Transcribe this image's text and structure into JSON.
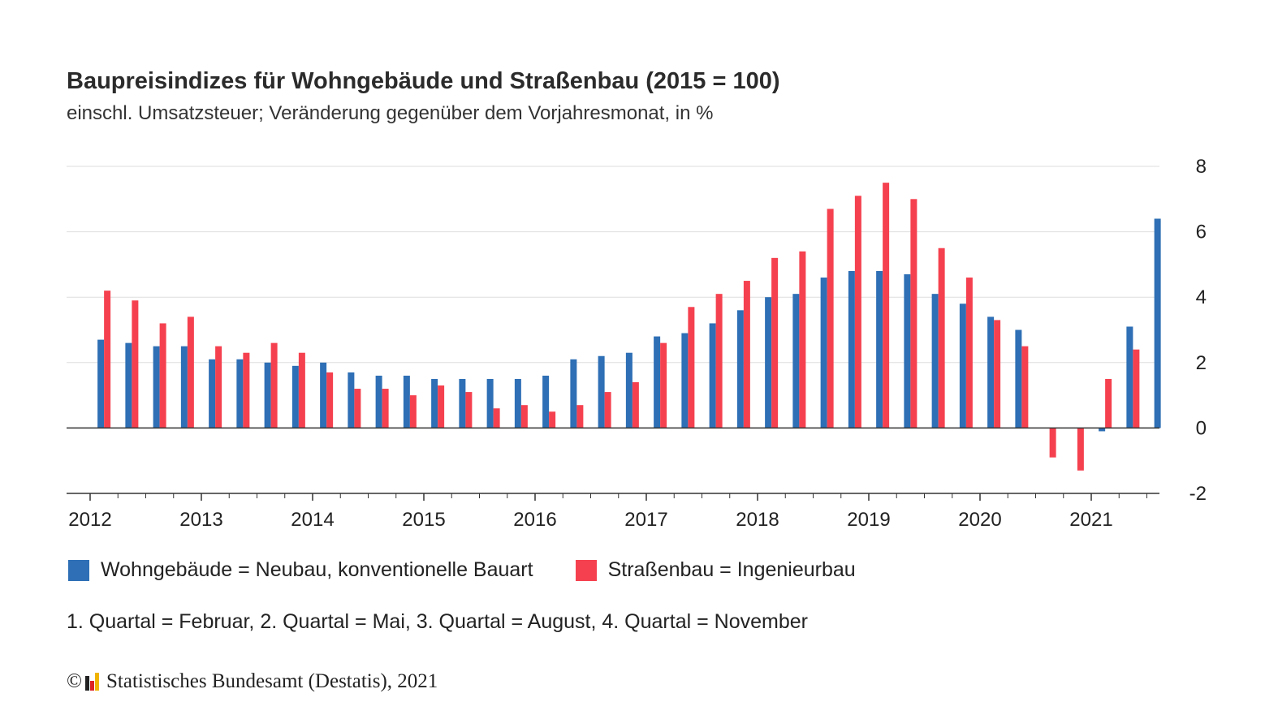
{
  "title": "Baupreisindizes für Wohngebäude und Straßenbau (2015 = 100)",
  "subtitle": "einschl. Umsatzsteuer; Veränderung gegenüber dem Vorjahresmonat, in %",
  "legend": {
    "series1": "Wohngebäude = Neubau, konventionelle Bauart",
    "series2": "Straßenbau = Ingenieurbau"
  },
  "note": "1. Quartal = Februar, 2. Quartal = Mai, 3. Quartal = August, 4. Quartal = November",
  "source": {
    "copyright": "©",
    "text": "Statistisches Bundesamt (Destatis), 2021"
  },
  "colors": {
    "series1": "#2e6fb5",
    "series2": "#f5414f",
    "grid": "#dedede",
    "axis": "#333333"
  },
  "chart_data": {
    "type": "bar",
    "categories": [
      "2012 Q1",
      "2012 Q2",
      "2012 Q3",
      "2012 Q4",
      "2013 Q1",
      "2013 Q2",
      "2013 Q3",
      "2013 Q4",
      "2014 Q1",
      "2014 Q2",
      "2014 Q3",
      "2014 Q4",
      "2015 Q1",
      "2015 Q2",
      "2015 Q3",
      "2015 Q4",
      "2016 Q1",
      "2016 Q2",
      "2016 Q3",
      "2016 Q4",
      "2017 Q1",
      "2017 Q2",
      "2017 Q3",
      "2017 Q4",
      "2018 Q1",
      "2018 Q2",
      "2018 Q3",
      "2018 Q4",
      "2019 Q1",
      "2019 Q2",
      "2019 Q3",
      "2019 Q4",
      "2020 Q1",
      "2020 Q2",
      "2020 Q3",
      "2020 Q4",
      "2021 Q1",
      "2021 Q2",
      "2021 Q3",
      "2021 Q4"
    ],
    "x_tick_labels": [
      "2012",
      "2013",
      "2014",
      "2015",
      "2016",
      "2017",
      "2018",
      "2019",
      "2020",
      "2021"
    ],
    "series": [
      {
        "name": "Wohngebäude = Neubau, konventionelle Bauart",
        "values": [
          2.7,
          2.6,
          2.5,
          2.5,
          2.1,
          2.1,
          2.0,
          1.9,
          2.0,
          1.7,
          1.6,
          1.6,
          1.5,
          1.5,
          1.5,
          1.5,
          1.6,
          2.1,
          2.2,
          2.3,
          2.8,
          2.9,
          3.2,
          3.6,
          4.0,
          4.1,
          4.6,
          4.8,
          4.8,
          4.7,
          4.1,
          3.8,
          3.4,
          3.0,
          null,
          null,
          -0.1,
          3.1,
          6.4,
          null
        ]
      },
      {
        "name": "Straßenbau = Ingenieurbau",
        "values": [
          4.2,
          3.9,
          3.2,
          3.4,
          2.5,
          2.3,
          2.6,
          2.3,
          1.7,
          1.2,
          1.2,
          1.0,
          1.3,
          1.1,
          0.6,
          0.7,
          0.5,
          0.7,
          1.1,
          1.4,
          2.6,
          3.7,
          4.1,
          4.5,
          5.2,
          5.4,
          6.7,
          7.1,
          7.5,
          7.0,
          5.5,
          4.6,
          3.3,
          2.5,
          -0.9,
          -1.3,
          1.5,
          2.4,
          null,
          null
        ]
      }
    ],
    "y_ticks": [
      8,
      6,
      4,
      2,
      0,
      -2
    ],
    "ylim": [
      -2,
      8
    ],
    "xlabel": "",
    "ylabel": "",
    "grid": true,
    "y_axis_position": "right",
    "legend_position": "bottom-left"
  }
}
